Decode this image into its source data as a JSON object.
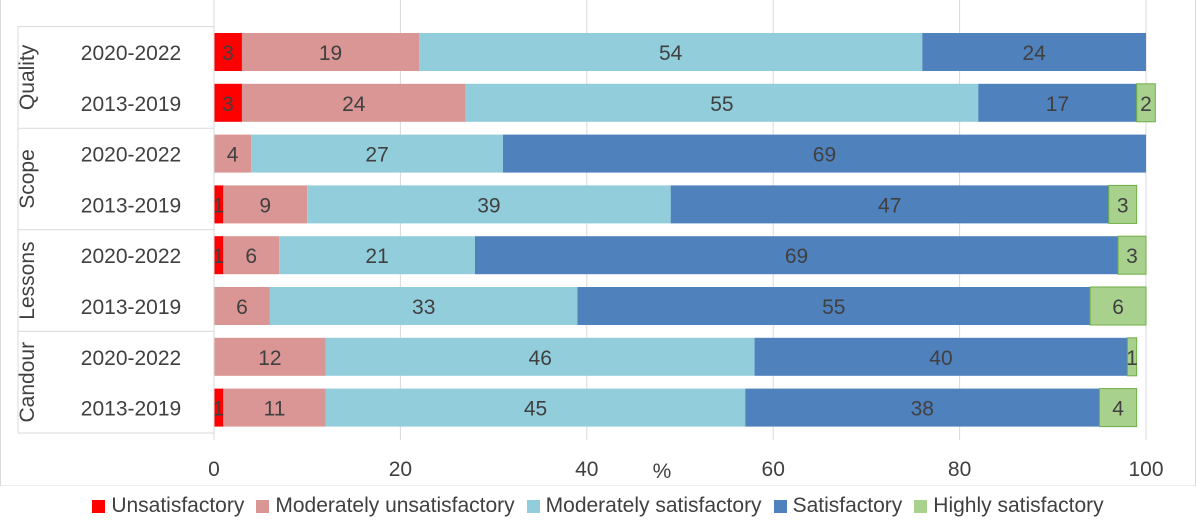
{
  "chart_data": {
    "type": "bar",
    "orientation": "horizontal",
    "stacked": true,
    "xlabel": "%",
    "xlim": [
      0,
      100
    ],
    "xticks": [
      0,
      20,
      40,
      60,
      80,
      100
    ],
    "grid": true,
    "legend_position": "bottom",
    "groups": [
      {
        "label": "Quality",
        "rows": [
          {
            "label": "2020-2022",
            "values": [
              3,
              19,
              54,
              24,
              0
            ]
          },
          {
            "label": "2013-2019",
            "values": [
              3,
              24,
              55,
              17,
              2
            ]
          }
        ]
      },
      {
        "label": "Scope",
        "rows": [
          {
            "label": "2020-2022",
            "values": [
              0,
              4,
              27,
              69,
              0
            ]
          },
          {
            "label": "2013-2019",
            "values": [
              1,
              9,
              39,
              47,
              3
            ]
          }
        ]
      },
      {
        "label": "Lessons",
        "rows": [
          {
            "label": "2020-2022",
            "values": [
              1,
              6,
              21,
              69,
              3
            ]
          },
          {
            "label": "2013-2019",
            "values": [
              0,
              6,
              33,
              55,
              6
            ]
          }
        ]
      },
      {
        "label": "Candour",
        "rows": [
          {
            "label": "2020-2022",
            "values": [
              0,
              12,
              46,
              40,
              1
            ]
          },
          {
            "label": "2013-2019",
            "values": [
              1,
              11,
              45,
              38,
              4
            ]
          }
        ]
      }
    ],
    "series": [
      {
        "name": "Unsatisfactory",
        "color": "#ff0000"
      },
      {
        "name": "Moderately unsatisfactory",
        "color": "#d99694"
      },
      {
        "name": "Moderately satisfactory",
        "color": "#92cddc"
      },
      {
        "name": "Satisfactory",
        "color": "#4f81bd"
      },
      {
        "name": "Highly satisfactory",
        "color": "#a9d18e"
      }
    ]
  }
}
